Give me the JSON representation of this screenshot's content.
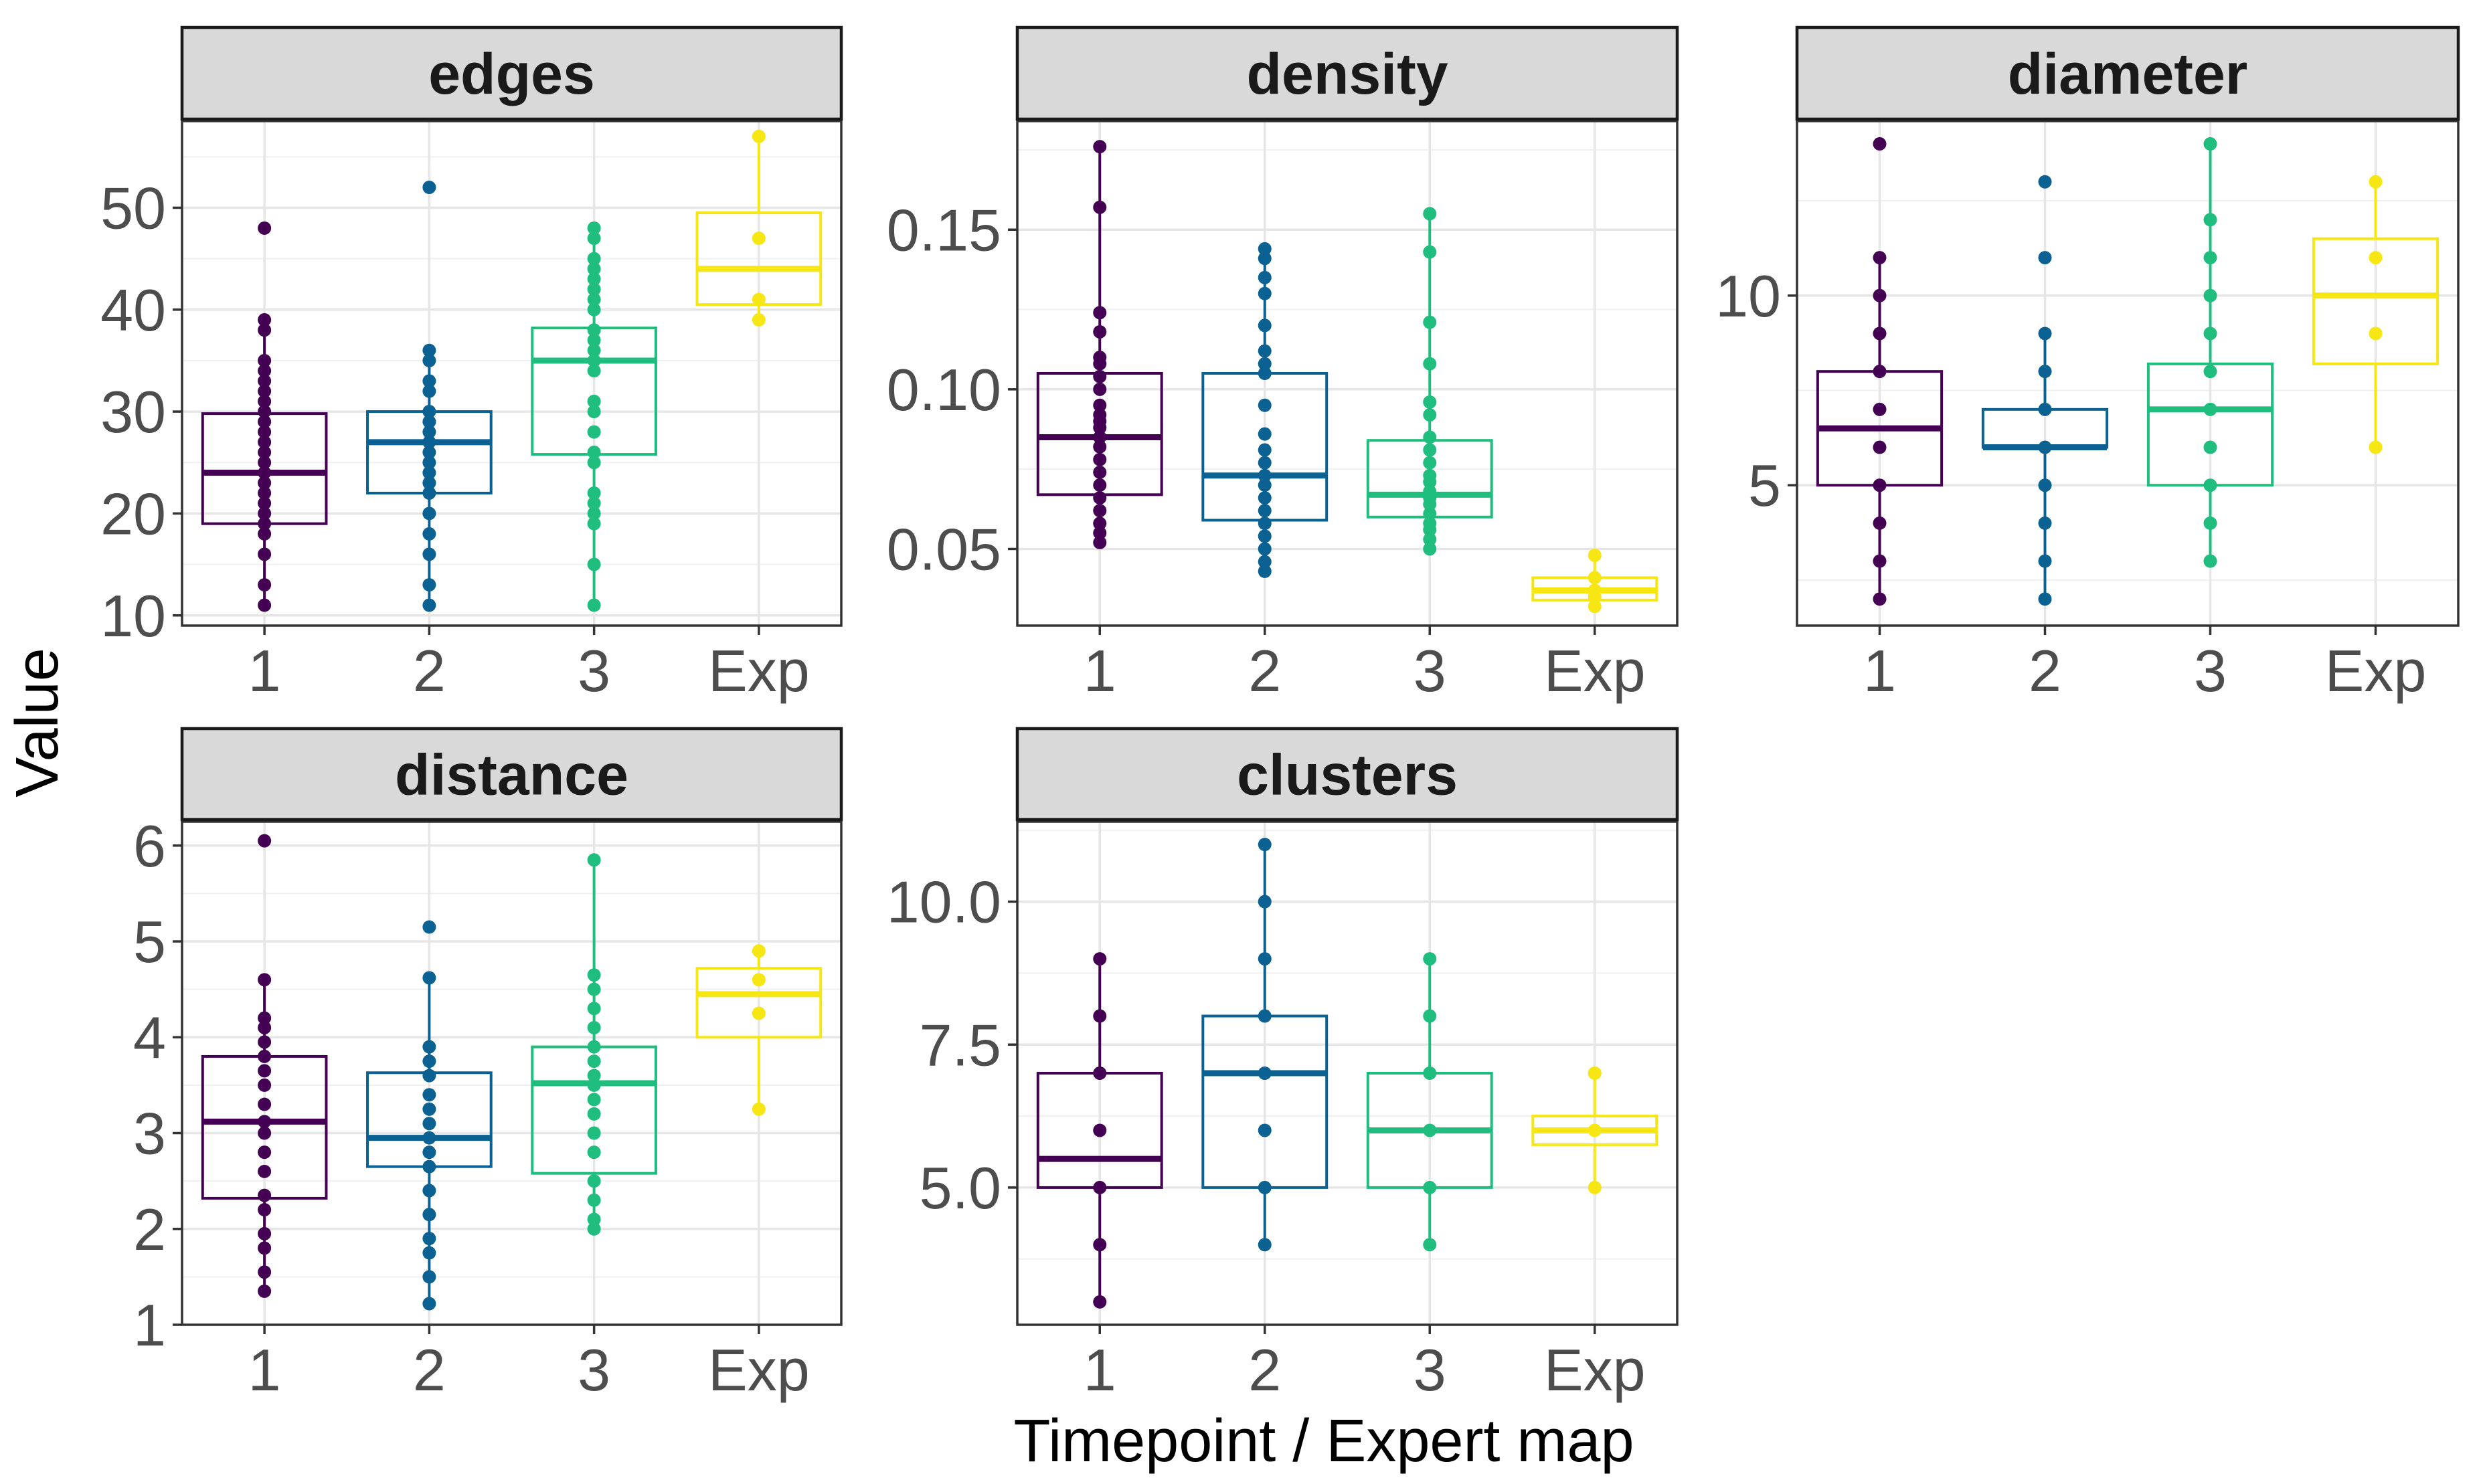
{
  "chart_data": {
    "type": "boxplot",
    "xlabel": "Timepoint / Expert map",
    "ylabel": "Value",
    "categories": [
      "1",
      "2",
      "3",
      "Exp"
    ],
    "colors": {
      "1": "#440154",
      "2": "#0a6192",
      "3": "#1fbe7e",
      "Exp": "#f5e614"
    },
    "grid": true,
    "legend": "none",
    "panels": [
      {
        "title": "edges",
        "ylim": [
          9,
          58.5
        ],
        "yticks": [
          10,
          20,
          30,
          40,
          50
        ],
        "ytick_labels": [
          "10",
          "20",
          "30",
          "40",
          "50"
        ],
        "boxes": [
          {
            "category": "1",
            "q1": 19,
            "median": 24,
            "q3": 29.8,
            "whisker_low": 11,
            "whisker_high": 39,
            "points": [
              11,
              13,
              16,
              18,
              19,
              20,
              21,
              22,
              23,
              24,
              25,
              26,
              27,
              28,
              29,
              30,
              31,
              32,
              33,
              34,
              35,
              38,
              39,
              48
            ]
          },
          {
            "category": "2",
            "q1": 22,
            "median": 27,
            "q3": 30,
            "whisker_low": 11,
            "whisker_high": 36,
            "points": [
              11,
              13,
              16,
              18,
              20,
              22,
              23,
              24,
              25,
              26,
              27,
              28,
              29,
              30,
              32,
              33,
              35,
              36,
              52
            ]
          },
          {
            "category": "3",
            "q1": 25.8,
            "median": 35,
            "q3": 38.2,
            "whisker_low": 11,
            "whisker_high": 48,
            "points": [
              11,
              15,
              19,
              20,
              21,
              22,
              25,
              26,
              28,
              30,
              31,
              34,
              35,
              36,
              37,
              38,
              40,
              41,
              42,
              43,
              44,
              45,
              47,
              48
            ]
          },
          {
            "category": "Exp",
            "q1": 40.5,
            "median": 44,
            "q3": 49.5,
            "whisker_low": 39,
            "whisker_high": 57,
            "points": [
              39,
              41,
              47,
              57
            ]
          }
        ]
      },
      {
        "title": "density",
        "ylim": [
          0.026,
          0.184
        ],
        "yticks": [
          0.05,
          0.1,
          0.15
        ],
        "ytick_labels": [
          "0.05",
          "0.10",
          "0.15"
        ],
        "boxes": [
          {
            "category": "1",
            "q1": 0.067,
            "median": 0.085,
            "q3": 0.105,
            "whisker_low": 0.052,
            "whisker_high": 0.176,
            "points": [
              0.052,
              0.055,
              0.058,
              0.062,
              0.066,
              0.07,
              0.074,
              0.078,
              0.082,
              0.085,
              0.088,
              0.09,
              0.092,
              0.095,
              0.1,
              0.104,
              0.108,
              0.11,
              0.118,
              0.124,
              0.157,
              0.176
            ]
          },
          {
            "category": "2",
            "q1": 0.059,
            "median": 0.073,
            "q3": 0.105,
            "whisker_low": 0.043,
            "whisker_high": 0.144,
            "points": [
              0.043,
              0.046,
              0.05,
              0.054,
              0.058,
              0.062,
              0.066,
              0.07,
              0.073,
              0.077,
              0.081,
              0.086,
              0.095,
              0.105,
              0.108,
              0.112,
              0.12,
              0.13,
              0.135,
              0.141,
              0.144
            ]
          },
          {
            "category": "3",
            "q1": 0.06,
            "median": 0.067,
            "q3": 0.084,
            "whisker_low": 0.05,
            "whisker_high": 0.155,
            "points": [
              0.05,
              0.053,
              0.056,
              0.058,
              0.061,
              0.064,
              0.066,
              0.068,
              0.071,
              0.073,
              0.077,
              0.081,
              0.085,
              0.092,
              0.096,
              0.108,
              0.121,
              0.143,
              0.155
            ]
          },
          {
            "category": "Exp",
            "q1": 0.034,
            "median": 0.037,
            "q3": 0.041,
            "whisker_low": 0.032,
            "whisker_high": 0.048,
            "points": [
              0.032,
              0.035,
              0.037,
              0.041,
              0.048
            ]
          }
        ]
      },
      {
        "title": "diameter",
        "ylim": [
          1.3,
          14.6
        ],
        "yticks": [
          5,
          10
        ],
        "ytick_labels": [
          "5",
          "10"
        ],
        "boxes": [
          {
            "category": "1",
            "q1": 5,
            "median": 6.5,
            "q3": 8,
            "whisker_low": 2,
            "whisker_high": 11,
            "points": [
              2,
              3,
              4,
              5,
              6,
              7,
              8,
              9,
              10,
              11,
              14
            ]
          },
          {
            "category": "2",
            "q1": 6,
            "median": 6,
            "q3": 7,
            "whisker_low": 2,
            "whisker_high": 9,
            "points": [
              2,
              3,
              4,
              5,
              6,
              7,
              8,
              9,
              11,
              13
            ]
          },
          {
            "category": "3",
            "q1": 5,
            "median": 7,
            "q3": 8.2,
            "whisker_low": 3,
            "whisker_high": 14,
            "points": [
              3,
              4,
              5,
              6,
              7,
              8,
              9,
              10,
              11,
              12,
              14
            ]
          },
          {
            "category": "Exp",
            "q1": 8.2,
            "median": 10,
            "q3": 11.5,
            "whisker_low": 6,
            "whisker_high": 13,
            "points": [
              6,
              9,
              11,
              13
            ]
          }
        ]
      },
      {
        "title": "distance",
        "ylim": [
          1,
          6.25
        ],
        "yticks": [
          1,
          2,
          3,
          4,
          5,
          6
        ],
        "ytick_labels": [
          "1",
          "2",
          "3",
          "4",
          "5",
          "6"
        ],
        "boxes": [
          {
            "category": "1",
            "q1": 2.32,
            "median": 3.12,
            "q3": 3.8,
            "whisker_low": 1.35,
            "whisker_high": 4.6,
            "points": [
              1.35,
              1.55,
              1.8,
              1.95,
              2.2,
              2.35,
              2.6,
              2.8,
              3.0,
              3.12,
              3.3,
              3.5,
              3.65,
              3.8,
              3.95,
              4.1,
              4.2,
              4.6,
              6.05
            ]
          },
          {
            "category": "2",
            "q1": 2.65,
            "median": 2.95,
            "q3": 3.63,
            "whisker_low": 1.22,
            "whisker_high": 4.62,
            "points": [
              1.22,
              1.5,
              1.75,
              1.9,
              2.15,
              2.4,
              2.65,
              2.8,
              2.95,
              3.1,
              3.25,
              3.4,
              3.6,
              3.75,
              3.9,
              4.62,
              5.15
            ]
          },
          {
            "category": "3",
            "q1": 2.58,
            "median": 3.52,
            "q3": 3.9,
            "whisker_low": 2.0,
            "whisker_high": 5.85,
            "points": [
              2.0,
              2.1,
              2.3,
              2.5,
              2.8,
              3.0,
              3.2,
              3.35,
              3.5,
              3.6,
              3.75,
              3.9,
              4.1,
              4.3,
              4.5,
              4.65,
              5.85
            ]
          },
          {
            "category": "Exp",
            "q1": 4.0,
            "median": 4.45,
            "q3": 4.72,
            "whisker_low": 3.25,
            "whisker_high": 4.9,
            "points": [
              3.25,
              4.25,
              4.6,
              4.9
            ]
          }
        ]
      },
      {
        "title": "clusters",
        "ylim": [
          2.6,
          11.4
        ],
        "yticks": [
          5,
          7.5,
          10
        ],
        "ytick_labels": [
          "5.0",
          "7.5",
          "10.0"
        ],
        "boxes": [
          {
            "category": "1",
            "q1": 5,
            "median": 5.5,
            "q3": 7,
            "whisker_low": 3,
            "whisker_high": 9,
            "points": [
              3,
              4,
              5,
              6,
              7,
              8,
              9
            ]
          },
          {
            "category": "2",
            "q1": 5,
            "median": 7,
            "q3": 8,
            "whisker_low": 4,
            "whisker_high": 11,
            "points": [
              4,
              5,
              6,
              7,
              8,
              9,
              10,
              11
            ]
          },
          {
            "category": "3",
            "q1": 5,
            "median": 6,
            "q3": 7,
            "whisker_low": 4,
            "whisker_high": 9,
            "points": [
              4,
              5,
              6,
              7,
              8,
              9
            ]
          },
          {
            "category": "Exp",
            "q1": 5.75,
            "median": 6,
            "q3": 6.25,
            "whisker_low": 5,
            "whisker_high": 7,
            "points": [
              5,
              6,
              7
            ]
          }
        ]
      }
    ]
  }
}
